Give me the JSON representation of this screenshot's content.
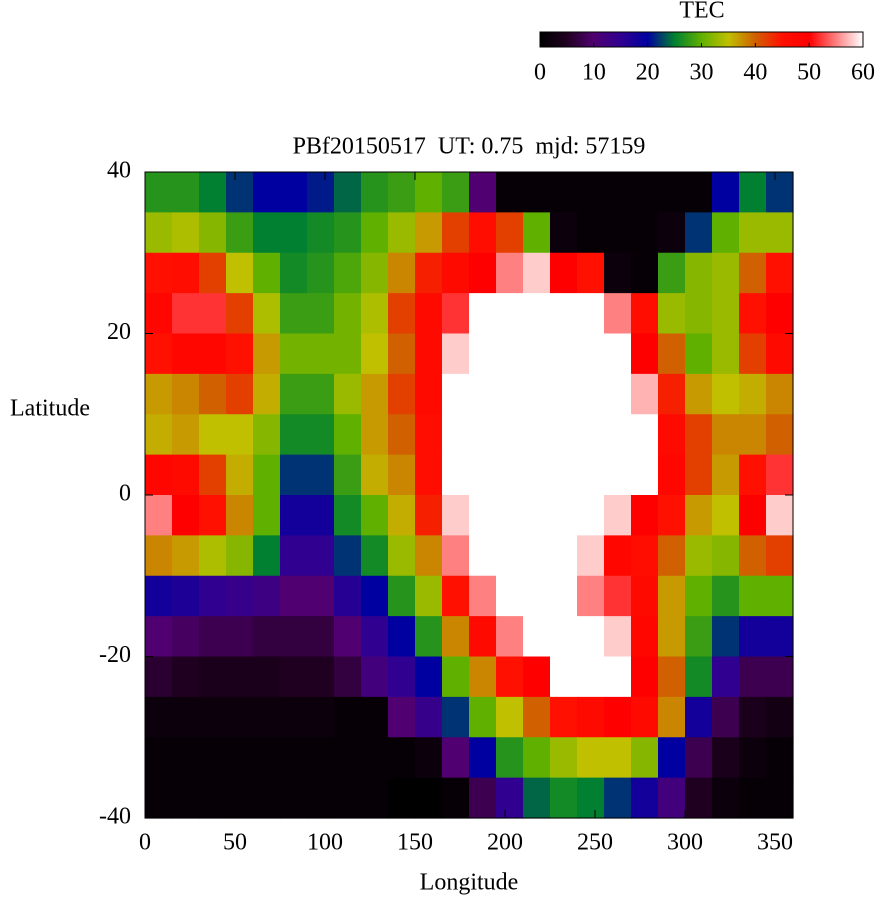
{
  "chart_data": {
    "type": "heatmap",
    "title": "PBf20150517  UT: 0.75  mjd: 57159",
    "xlabel": "Longitude",
    "ylabel": "Latitude",
    "colorbar_label": "TEC",
    "xlim": [
      0,
      360
    ],
    "ylim": [
      -40,
      40
    ],
    "xticks": [
      0,
      50,
      100,
      150,
      200,
      250,
      300,
      350
    ],
    "yticks": [
      40,
      20,
      0,
      -20,
      -40
    ],
    "clim": [
      0,
      60
    ],
    "cticks": [
      0,
      10,
      20,
      30,
      40,
      50,
      60
    ],
    "colors": [
      "#000000",
      "#200020",
      "#500070",
      "#300090",
      "#0000a0",
      "#008030",
      "#60b000",
      "#c0c000",
      "#d06000",
      "#ff1000",
      "#ff0000",
      "#ff8080",
      "#ffffff"
    ],
    "x": [
      7.5,
      22.5,
      37.5,
      52.5,
      67.5,
      82.5,
      97.5,
      112.5,
      127.5,
      142.5,
      157.5,
      172.5,
      187.5,
      202.5,
      217.5,
      232.5,
      247.5,
      262.5,
      277.5,
      292.5,
      307.5,
      322.5,
      337.5,
      352.5
    ],
    "y": [
      37.5,
      32.5,
      27.5,
      22.5,
      17.5,
      12.5,
      7.5,
      2.5,
      -2.5,
      -7.5,
      -12.5,
      -17.5,
      -22.5,
      -27.5,
      -32.5,
      -37.5
    ],
    "z": [
      [
        27,
        27,
        25,
        22,
        20,
        20,
        21,
        24,
        27,
        28,
        30,
        28,
        10,
        1,
        1,
        1,
        1,
        1,
        1,
        1,
        1,
        20,
        25,
        22
      ],
      [
        33,
        34,
        32,
        28,
        25,
        25,
        26,
        27,
        30,
        33,
        37,
        42,
        46,
        42,
        30,
        2,
        1,
        1,
        1,
        2,
        22,
        30,
        33,
        33
      ],
      [
        45,
        46,
        42,
        35,
        30,
        26,
        27,
        29,
        32,
        38,
        44,
        47,
        50,
        55,
        58,
        50,
        45,
        2,
        1,
        28,
        32,
        33,
        40,
        45
      ],
      [
        48,
        52,
        52,
        42,
        34,
        28,
        28,
        31,
        34,
        42,
        47,
        52,
        60,
        60,
        60,
        60,
        60,
        55,
        46,
        33,
        32,
        33,
        45,
        50
      ],
      [
        45,
        48,
        48,
        45,
        37,
        31,
        31,
        31,
        35,
        40,
        47,
        58,
        60,
        60,
        60,
        60,
        60,
        60,
        50,
        40,
        30,
        33,
        42,
        47
      ],
      [
        37,
        38,
        40,
        42,
        36,
        28,
        28,
        33,
        37,
        42,
        47,
        60,
        60,
        60,
        60,
        60,
        60,
        60,
        57,
        44,
        37,
        35,
        36,
        38
      ],
      [
        36,
        37,
        35,
        35,
        32,
        26,
        26,
        30,
        37,
        40,
        46,
        60,
        60,
        60,
        60,
        60,
        60,
        60,
        60,
        47,
        42,
        38,
        38,
        40
      ],
      [
        48,
        47,
        42,
        36,
        30,
        22,
        22,
        28,
        36,
        38,
        46,
        60,
        60,
        60,
        60,
        60,
        60,
        60,
        60,
        48,
        42,
        37,
        45,
        52
      ],
      [
        55,
        50,
        45,
        38,
        30,
        18,
        18,
        26,
        30,
        36,
        44,
        58,
        60,
        60,
        60,
        60,
        60,
        58,
        50,
        45,
        37,
        35,
        50,
        58
      ],
      [
        38,
        37,
        34,
        32,
        25,
        15,
        15,
        22,
        26,
        33,
        38,
        55,
        60,
        60,
        60,
        60,
        58,
        48,
        46,
        40,
        33,
        32,
        40,
        42
      ],
      [
        18,
        17,
        15,
        14,
        13,
        10,
        10,
        16,
        20,
        27,
        33,
        45,
        55,
        60,
        60,
        60,
        55,
        52,
        47,
        37,
        30,
        27,
        30,
        30
      ],
      [
        10,
        9,
        8,
        8,
        7,
        7,
        7,
        10,
        15,
        20,
        27,
        38,
        47,
        55,
        60,
        60,
        60,
        58,
        48,
        37,
        28,
        22,
        18,
        18
      ],
      [
        6,
        5,
        4,
        4,
        4,
        5,
        5,
        7,
        12,
        15,
        20,
        30,
        38,
        45,
        50,
        60,
        60,
        60,
        50,
        40,
        26,
        15,
        8,
        8
      ],
      [
        2,
        2,
        2,
        2,
        2,
        2,
        2,
        1,
        1,
        10,
        14,
        22,
        30,
        35,
        40,
        45,
        47,
        50,
        47,
        38,
        18,
        8,
        4,
        3
      ],
      [
        1,
        1,
        1,
        1,
        1,
        1,
        1,
        1,
        1,
        1,
        2,
        10,
        20,
        27,
        30,
        33,
        35,
        35,
        32,
        20,
        8,
        4,
        2,
        1
      ],
      [
        1,
        1,
        1,
        1,
        1,
        1,
        1,
        1,
        1,
        0,
        0,
        1,
        8,
        15,
        24,
        26,
        25,
        22,
        18,
        12,
        5,
        2,
        1,
        1
      ]
    ]
  }
}
